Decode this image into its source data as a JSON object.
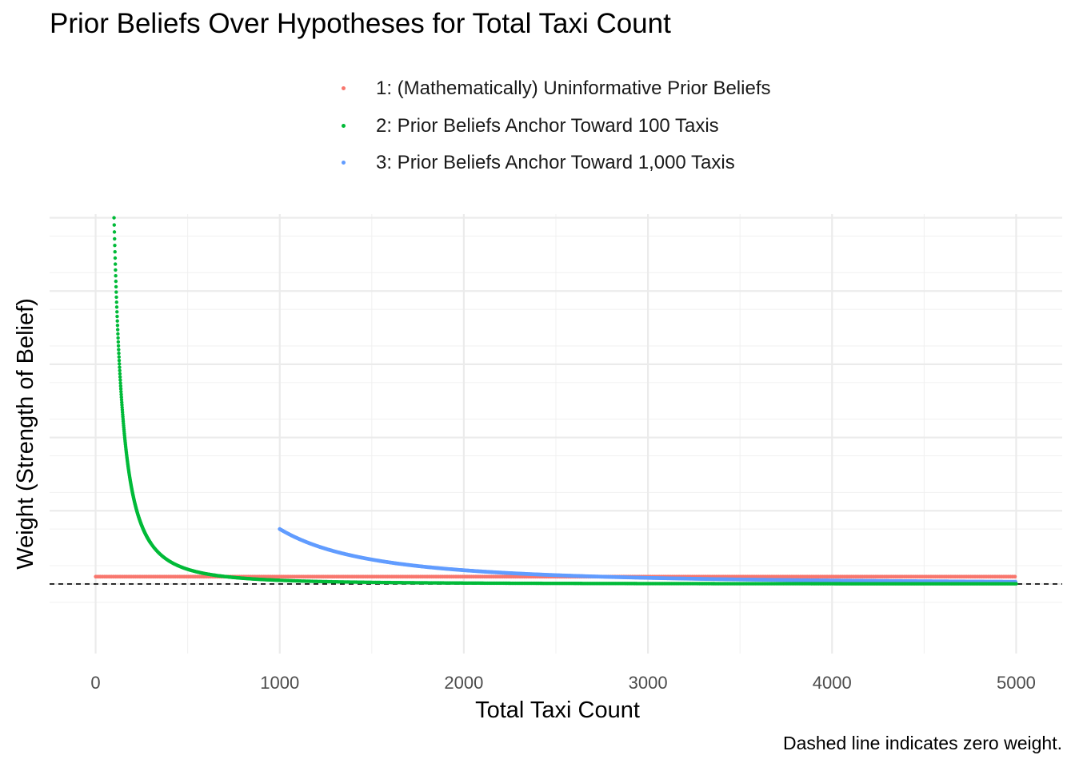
{
  "chart_data": {
    "type": "scatter",
    "title": "Prior Beliefs Over Hypotheses for Total Taxi Count",
    "xlabel": "Total Taxi Count",
    "ylabel": "Weight (Strength of Belief)",
    "caption": "Dashed line indicates zero weight.",
    "xlim": [
      -250,
      5250
    ],
    "ylim": [
      -0.0019,
      0.0101
    ],
    "x_ticks": [
      "0",
      "1000",
      "2000",
      "3000",
      "4000",
      "5000"
    ],
    "y_ticks_labeled": false,
    "grid": true,
    "legend_position": "top",
    "reference_line": {
      "y": 0,
      "style": "dashed"
    },
    "series": [
      {
        "name": "1: (Mathematically) Uninformative Prior Beliefs",
        "color": "#F8766D",
        "x_range": [
          1,
          5000
        ],
        "y_approx": 0.0002
      },
      {
        "name": "2: Prior Beliefs Anchor Toward 100 Taxis",
        "color": "#00BA38",
        "x_range": [
          100,
          5000
        ],
        "y_at_start": 0.01,
        "shape": "decay ~ 1/x^2"
      },
      {
        "name": "3: Prior Beliefs Anchor Toward 1,000 Taxis",
        "color": "#619CFF",
        "x_range": [
          1000,
          5000
        ],
        "y_at_start": 0.0015,
        "shape": "decay ~ 1/x^2"
      }
    ]
  }
}
